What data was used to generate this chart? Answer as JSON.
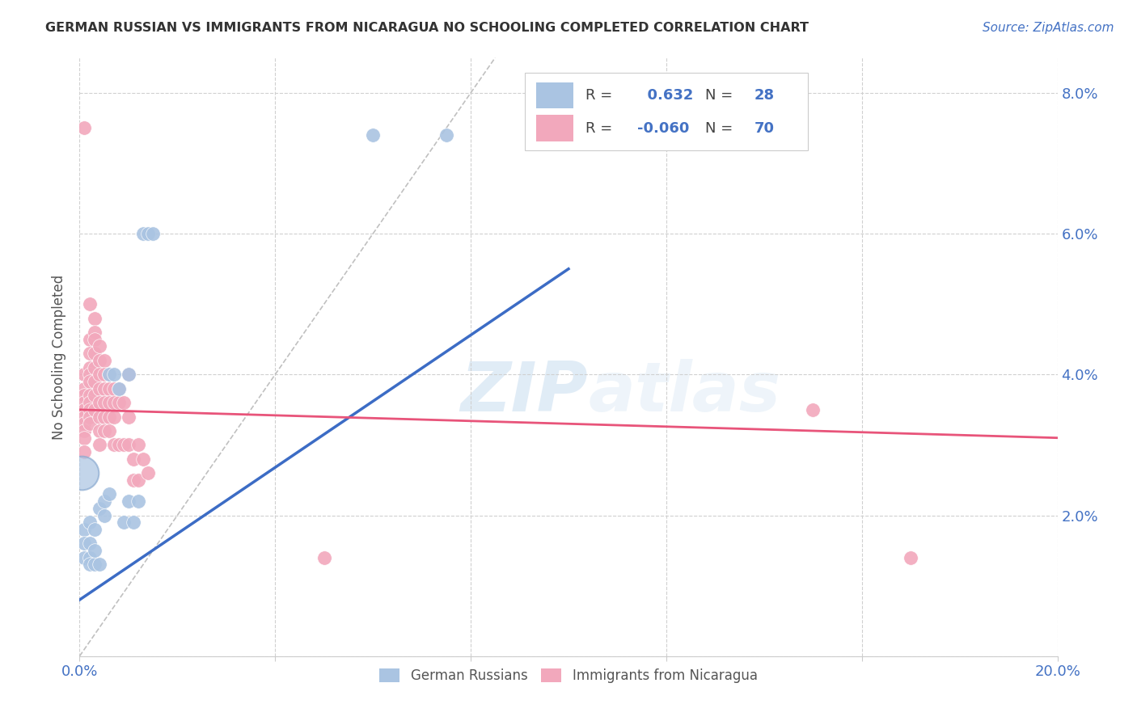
{
  "title": "GERMAN RUSSIAN VS IMMIGRANTS FROM NICARAGUA NO SCHOOLING COMPLETED CORRELATION CHART",
  "source": "Source: ZipAtlas.com",
  "ylabel": "No Schooling Completed",
  "xmin": 0.0,
  "xmax": 0.2,
  "ymin": 0.0,
  "ymax": 0.085,
  "blue_R": 0.632,
  "blue_N": 28,
  "pink_R": -0.06,
  "pink_N": 70,
  "blue_color": "#aac4e2",
  "pink_color": "#f2a8bc",
  "blue_line_color": "#3c6cc5",
  "pink_line_color": "#e8547a",
  "diag_line_color": "#c0c0c0",
  "legend_label_blue": "German Russians",
  "legend_label_pink": "Immigrants from Nicaragua",
  "watermark_zip": "ZIP",
  "watermark_atlas": "atlas",
  "blue_line": [
    [
      0.0,
      0.008
    ],
    [
      0.1,
      0.055
    ]
  ],
  "pink_line": [
    [
      0.0,
      0.035
    ],
    [
      0.2,
      0.031
    ]
  ],
  "diag_line": [
    [
      0.0,
      0.0
    ],
    [
      0.085,
      0.085
    ]
  ],
  "blue_scatter": [
    [
      0.001,
      0.018
    ],
    [
      0.001,
      0.016
    ],
    [
      0.001,
      0.014
    ],
    [
      0.002,
      0.014
    ],
    [
      0.002,
      0.013
    ],
    [
      0.002,
      0.016
    ],
    [
      0.002,
      0.019
    ],
    [
      0.003,
      0.013
    ],
    [
      0.003,
      0.015
    ],
    [
      0.003,
      0.018
    ],
    [
      0.004,
      0.013
    ],
    [
      0.004,
      0.021
    ],
    [
      0.005,
      0.022
    ],
    [
      0.005,
      0.02
    ],
    [
      0.006,
      0.023
    ],
    [
      0.006,
      0.04
    ],
    [
      0.007,
      0.04
    ],
    [
      0.008,
      0.038
    ],
    [
      0.009,
      0.019
    ],
    [
      0.01,
      0.022
    ],
    [
      0.01,
      0.04
    ],
    [
      0.011,
      0.019
    ],
    [
      0.012,
      0.022
    ],
    [
      0.013,
      0.06
    ],
    [
      0.014,
      0.06
    ],
    [
      0.015,
      0.06
    ],
    [
      0.06,
      0.074
    ],
    [
      0.075,
      0.074
    ]
  ],
  "pink_scatter": [
    [
      0.001,
      0.075
    ],
    [
      0.001,
      0.04
    ],
    [
      0.001,
      0.038
    ],
    [
      0.001,
      0.037
    ],
    [
      0.001,
      0.036
    ],
    [
      0.001,
      0.035
    ],
    [
      0.001,
      0.034
    ],
    [
      0.001,
      0.033
    ],
    [
      0.001,
      0.032
    ],
    [
      0.001,
      0.031
    ],
    [
      0.001,
      0.029
    ],
    [
      0.002,
      0.05
    ],
    [
      0.002,
      0.045
    ],
    [
      0.002,
      0.043
    ],
    [
      0.002,
      0.041
    ],
    [
      0.002,
      0.04
    ],
    [
      0.002,
      0.039
    ],
    [
      0.002,
      0.037
    ],
    [
      0.002,
      0.036
    ],
    [
      0.002,
      0.035
    ],
    [
      0.002,
      0.034
    ],
    [
      0.002,
      0.033
    ],
    [
      0.003,
      0.048
    ],
    [
      0.003,
      0.046
    ],
    [
      0.003,
      0.045
    ],
    [
      0.003,
      0.043
    ],
    [
      0.003,
      0.041
    ],
    [
      0.003,
      0.039
    ],
    [
      0.003,
      0.037
    ],
    [
      0.003,
      0.035
    ],
    [
      0.004,
      0.044
    ],
    [
      0.004,
      0.042
    ],
    [
      0.004,
      0.04
    ],
    [
      0.004,
      0.038
    ],
    [
      0.004,
      0.036
    ],
    [
      0.004,
      0.034
    ],
    [
      0.004,
      0.032
    ],
    [
      0.004,
      0.03
    ],
    [
      0.005,
      0.042
    ],
    [
      0.005,
      0.04
    ],
    [
      0.005,
      0.038
    ],
    [
      0.005,
      0.036
    ],
    [
      0.005,
      0.034
    ],
    [
      0.005,
      0.032
    ],
    [
      0.006,
      0.04
    ],
    [
      0.006,
      0.038
    ],
    [
      0.006,
      0.036
    ],
    [
      0.006,
      0.034
    ],
    [
      0.006,
      0.032
    ],
    [
      0.007,
      0.038
    ],
    [
      0.007,
      0.036
    ],
    [
      0.007,
      0.034
    ],
    [
      0.007,
      0.03
    ],
    [
      0.008,
      0.038
    ],
    [
      0.008,
      0.036
    ],
    [
      0.008,
      0.03
    ],
    [
      0.009,
      0.036
    ],
    [
      0.009,
      0.03
    ],
    [
      0.01,
      0.04
    ],
    [
      0.01,
      0.034
    ],
    [
      0.01,
      0.03
    ],
    [
      0.011,
      0.028
    ],
    [
      0.011,
      0.025
    ],
    [
      0.012,
      0.03
    ],
    [
      0.012,
      0.025
    ],
    [
      0.013,
      0.028
    ],
    [
      0.014,
      0.026
    ],
    [
      0.05,
      0.014
    ],
    [
      0.15,
      0.035
    ],
    [
      0.17,
      0.014
    ]
  ],
  "blue_big_dot": [
    0.0005,
    0.026
  ],
  "blue_big_dot_size": 900
}
